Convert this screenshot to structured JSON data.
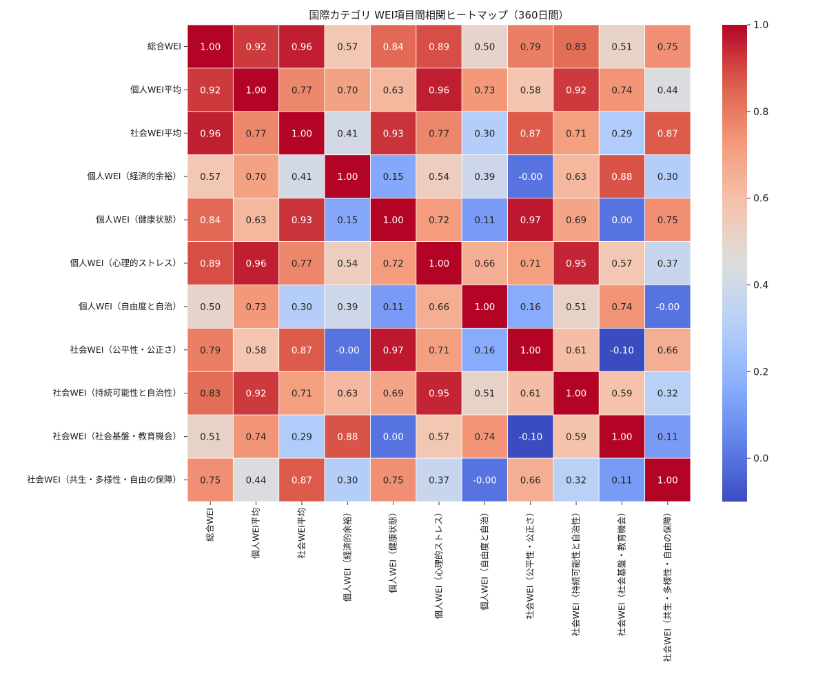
{
  "chart_data": {
    "type": "heatmap",
    "title": "国際カテゴリ WEI項目間相関ヒートマップ（360日間）",
    "labels": [
      "総合WEI",
      "個人WEI平均",
      "社会WEI平均",
      "個人WEI（経済的余裕）",
      "個人WEI（健康状態）",
      "個人WEI（心理的ストレス）",
      "個人WEI（自由度と自治）",
      "社会WEI（公平性・公正さ）",
      "社会WEI（持続可能性と自治性）",
      "社会WEI（社会基盤・教育機会）",
      "社会WEI（共生・多様性・自由の保障）"
    ],
    "matrix": [
      [
        "1.00",
        "0.92",
        "0.96",
        "0.57",
        "0.84",
        "0.89",
        "0.50",
        "0.79",
        "0.83",
        "0.51",
        "0.75"
      ],
      [
        "0.92",
        "1.00",
        "0.77",
        "0.70",
        "0.63",
        "0.96",
        "0.73",
        "0.58",
        "0.92",
        "0.74",
        "0.44"
      ],
      [
        "0.96",
        "0.77",
        "1.00",
        "0.41",
        "0.93",
        "0.77",
        "0.30",
        "0.87",
        "0.71",
        "0.29",
        "0.87"
      ],
      [
        "0.57",
        "0.70",
        "0.41",
        "1.00",
        "0.15",
        "0.54",
        "0.39",
        "-0.00",
        "0.63",
        "0.88",
        "0.30"
      ],
      [
        "0.84",
        "0.63",
        "0.93",
        "0.15",
        "1.00",
        "0.72",
        "0.11",
        "0.97",
        "0.69",
        "0.00",
        "0.75"
      ],
      [
        "0.89",
        "0.96",
        "0.77",
        "0.54",
        "0.72",
        "1.00",
        "0.66",
        "0.71",
        "0.95",
        "0.57",
        "0.37"
      ],
      [
        "0.50",
        "0.73",
        "0.30",
        "0.39",
        "0.11",
        "0.66",
        "1.00",
        "0.16",
        "0.51",
        "0.74",
        "-0.00"
      ],
      [
        "0.79",
        "0.58",
        "0.87",
        "-0.00",
        "0.97",
        "0.71",
        "0.16",
        "1.00",
        "0.61",
        "-0.10",
        "0.66"
      ],
      [
        "0.83",
        "0.92",
        "0.71",
        "0.63",
        "0.69",
        "0.95",
        "0.51",
        "0.61",
        "1.00",
        "0.59",
        "0.32"
      ],
      [
        "0.51",
        "0.74",
        "0.29",
        "0.88",
        "0.00",
        "0.57",
        "0.74",
        "-0.10",
        "0.59",
        "1.00",
        "0.11"
      ],
      [
        "0.75",
        "0.44",
        "0.87",
        "0.30",
        "0.75",
        "0.37",
        "-0.00",
        "0.66",
        "0.32",
        "0.11",
        "1.00"
      ]
    ],
    "colormap": "coolwarm",
    "vmin": -0.1,
    "vmax": 1.0,
    "colorbar_ticks": [
      "0.0",
      "0.2",
      "0.4",
      "0.6",
      "0.8",
      "1.0"
    ],
    "annotations": true
  }
}
